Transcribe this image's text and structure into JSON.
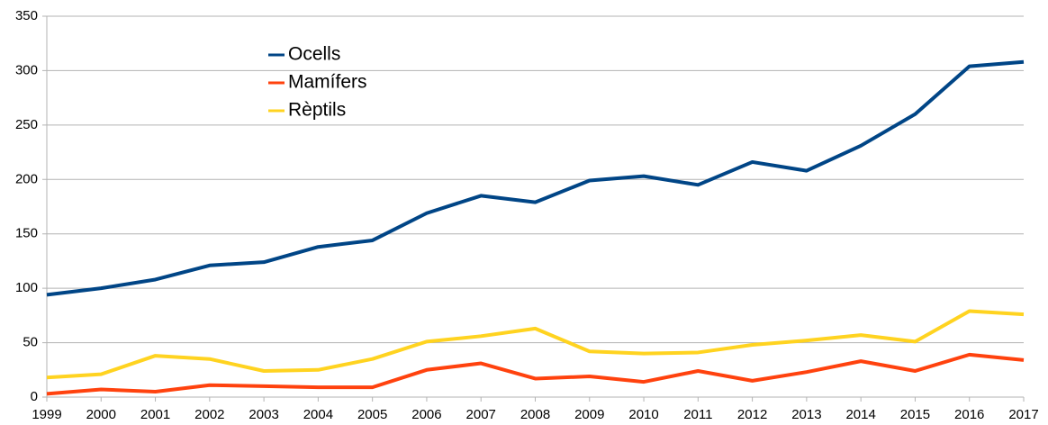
{
  "chart_data": {
    "type": "line",
    "categories": [
      "1999",
      "2000",
      "2001",
      "2002",
      "2003",
      "2004",
      "2005",
      "2006",
      "2007",
      "2008",
      "2009",
      "2010",
      "2011",
      "2012",
      "2013",
      "2014",
      "2015",
      "2016",
      "2017"
    ],
    "series": [
      {
        "name": "Ocells",
        "color": "#004586",
        "values": [
          94,
          100,
          108,
          121,
          124,
          138,
          144,
          169,
          185,
          179,
          199,
          203,
          195,
          216,
          208,
          231,
          260,
          304,
          308
        ]
      },
      {
        "name": "Mamífers",
        "color": "#ff420e",
        "values": [
          3,
          7,
          5,
          11,
          10,
          9,
          9,
          25,
          31,
          17,
          19,
          14,
          24,
          15,
          23,
          33,
          24,
          39,
          34
        ]
      },
      {
        "name": "Rèptils",
        "color": "#ffd320",
        "values": [
          18,
          21,
          38,
          35,
          24,
          25,
          35,
          51,
          56,
          63,
          42,
          40,
          41,
          48,
          52,
          57,
          51,
          79,
          76
        ]
      }
    ],
    "ylim": [
      0,
      350
    ],
    "yticks": [
      0,
      50,
      100,
      150,
      200,
      250,
      300,
      350
    ],
    "grid": true
  }
}
